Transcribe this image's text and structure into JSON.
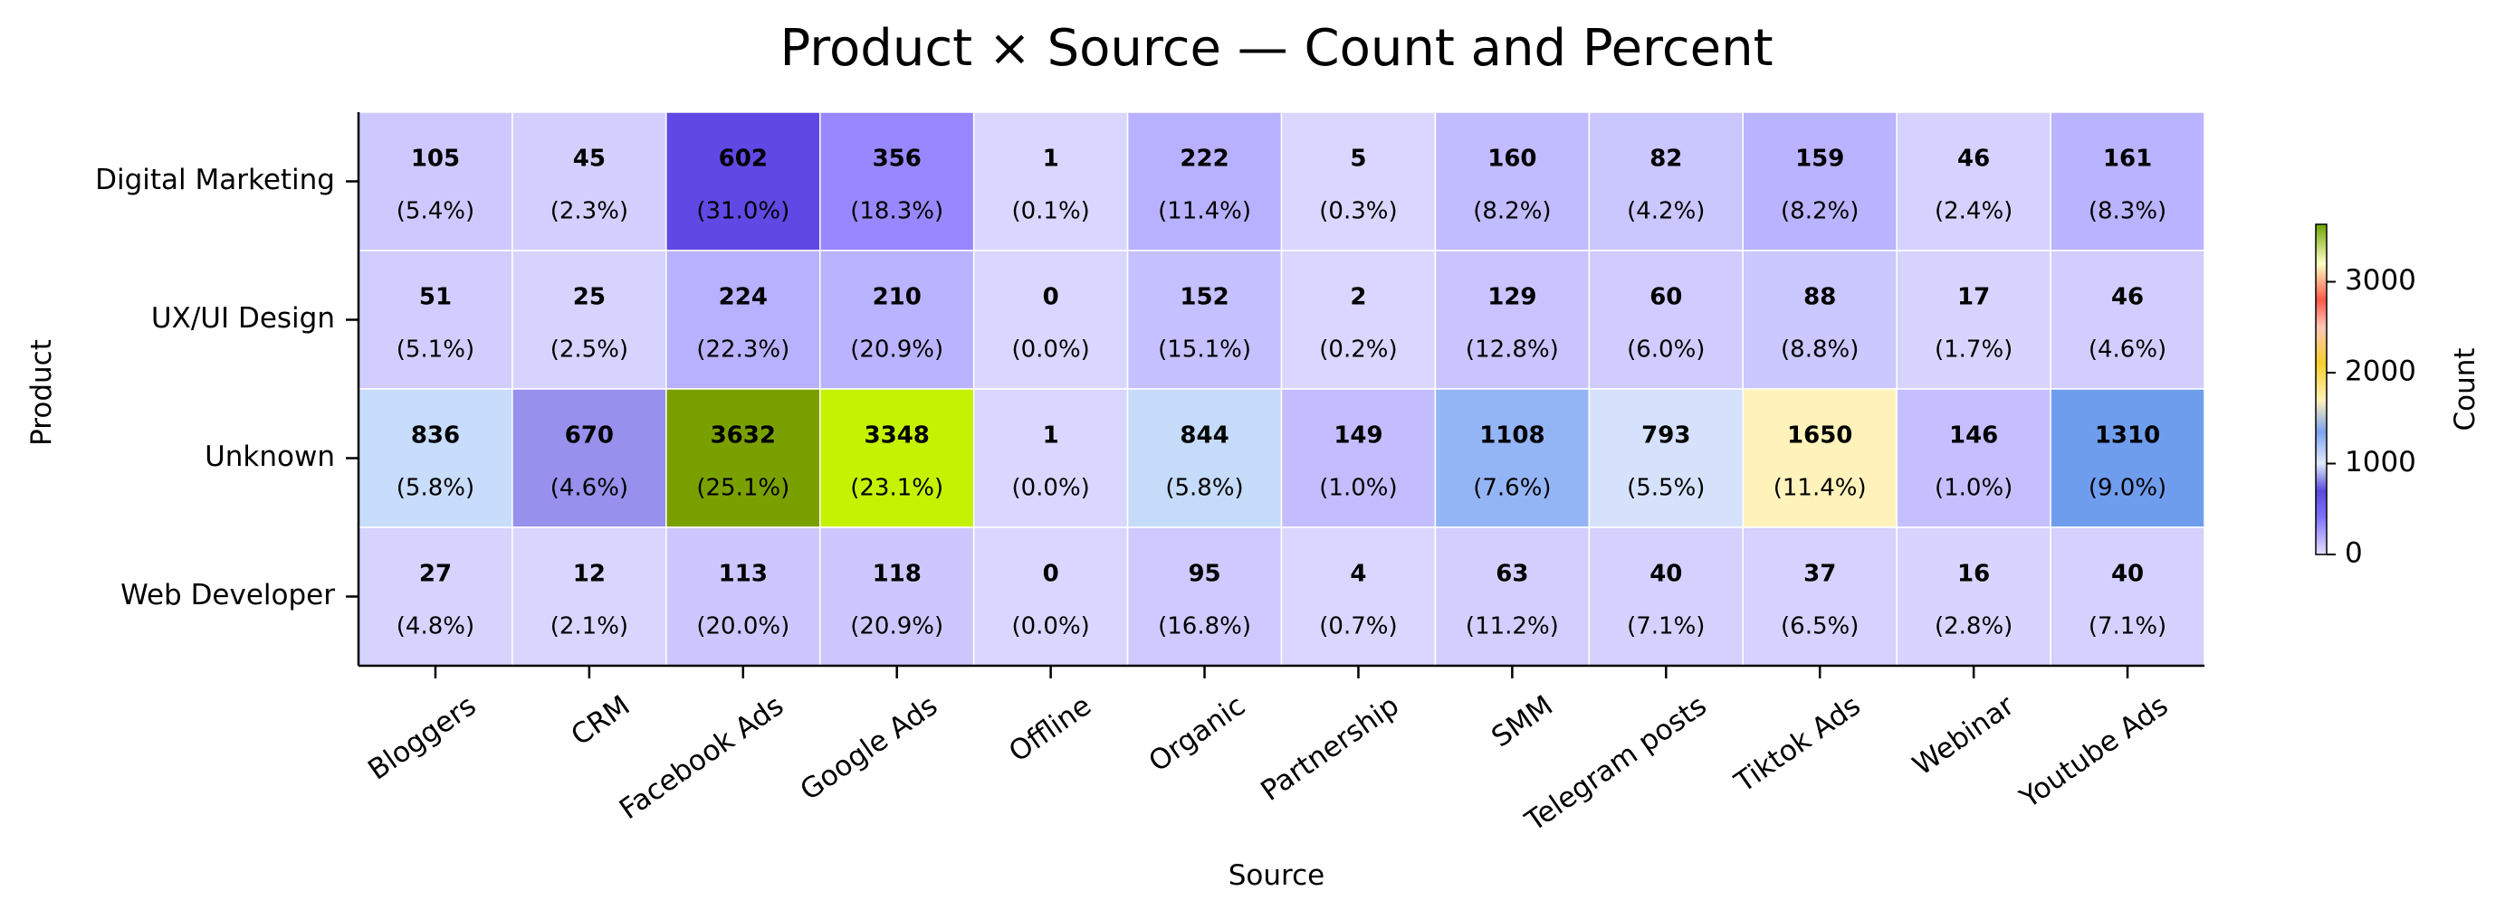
{
  "chart_data": {
    "type": "heatmap",
    "title": "Product × Source — Count and Percent",
    "xlabel": "Source",
    "ylabel": "Product",
    "x_categories": [
      "Bloggers",
      "CRM",
      "Facebook Ads",
      "Google Ads",
      "Offline",
      "Organic",
      "Partnership",
      "SMM",
      "Telegram posts",
      "Tiktok Ads",
      "Webinar",
      "Youtube Ads"
    ],
    "y_categories": [
      "Digital Marketing",
      "UX/UI Design",
      "Unknown",
      "Web Developer"
    ],
    "values": [
      [
        105,
        45,
        602,
        356,
        1,
        222,
        5,
        160,
        82,
        159,
        46,
        161
      ],
      [
        51,
        25,
        224,
        210,
        0,
        152,
        2,
        129,
        60,
        88,
        17,
        46
      ],
      [
        836,
        670,
        3632,
        3348,
        1,
        844,
        149,
        1108,
        793,
        1650,
        146,
        1310
      ],
      [
        27,
        12,
        113,
        118,
        0,
        95,
        4,
        63,
        40,
        37,
        16,
        40
      ]
    ],
    "percent_labels": [
      [
        "(5.4%)",
        "(2.3%)",
        "(31.0%)",
        "(18.3%)",
        "(0.1%)",
        "(11.4%)",
        "(0.3%)",
        "(8.2%)",
        "(4.2%)",
        "(8.2%)",
        "(2.4%)",
        "(8.3%)"
      ],
      [
        "(5.1%)",
        "(2.5%)",
        "(22.3%)",
        "(20.9%)",
        "(0.0%)",
        "(15.1%)",
        "(0.2%)",
        "(12.8%)",
        "(6.0%)",
        "(8.8%)",
        "(1.7%)",
        "(4.6%)"
      ],
      [
        "(5.8%)",
        "(4.6%)",
        "(25.1%)",
        "(23.1%)",
        "(0.0%)",
        "(5.8%)",
        "(1.0%)",
        "(7.6%)",
        "(5.5%)",
        "(11.4%)",
        "(1.0%)",
        "(9.0%)"
      ],
      [
        "(4.8%)",
        "(2.1%)",
        "(20.0%)",
        "(20.9%)",
        "(0.0%)",
        "(16.8%)",
        "(0.7%)",
        "(11.2%)",
        "(7.1%)",
        "(6.5%)",
        "(2.8%)",
        "(7.1%)"
      ]
    ],
    "cell_colors": [
      [
        "#cdc9ff",
        "#d3d0ff",
        "#6048e4",
        "#9888ff",
        "#d9d7ff",
        "#b8b1ff",
        "#d9d7ff",
        "#c1bbff",
        "#cac6ff",
        "#bab3ff",
        "#d5d2ff",
        "#bab3ff"
      ],
      [
        "#d1ceff",
        "#d6d3ff",
        "#b8b1ff",
        "#bab3ff",
        "#d9d7ff",
        "#c5c0ff",
        "#d9d7ff",
        "#c9c4ff",
        "#d0ccff",
        "#cbc7ff",
        "#d7d4ff",
        "#d1ceff"
      ],
      [
        "#c8dcfc",
        "#9790ec",
        "#7aa000",
        "#c4f200",
        "#d9d7ff",
        "#c5dbfa",
        "#c3bdff",
        "#94b5f5",
        "#d6e2fc",
        "#fff3bb",
        "#c5bfff",
        "#6f9ded"
      ],
      [
        "#d6d3ff",
        "#d8d5ff",
        "#ccc8ff",
        "#ccc8ff",
        "#d9d7ff",
        "#cecaff",
        "#d9d7ff",
        "#d2cfff",
        "#d4d1ff",
        "#d5d2ff",
        "#d7d4ff",
        "#d4d1ff"
      ]
    ],
    "colorbar": {
      "label": "Count",
      "range": [
        0,
        3632
      ],
      "ticks": [
        0,
        1000,
        2000,
        3000
      ],
      "tick_labels": [
        "0",
        "1000",
        "2000",
        "3000"
      ],
      "stops": [
        {
          "value": 0,
          "color": "#e3e0ff"
        },
        {
          "value": 420,
          "color": "#7e70ff"
        },
        {
          "value": 700,
          "color": "#5a4bdd"
        },
        {
          "value": 1000,
          "color": "#dfe9fb"
        },
        {
          "value": 1350,
          "color": "#7ea4ee"
        },
        {
          "value": 1700,
          "color": "#fff1b8"
        },
        {
          "value": 2100,
          "color": "#f6cf2a"
        },
        {
          "value": 2500,
          "color": "#ffc6b8"
        },
        {
          "value": 2800,
          "color": "#ff5a4a"
        },
        {
          "value": 3200,
          "color": "#fdfec3"
        },
        {
          "value": 3632,
          "color": "#6fa500"
        }
      ]
    }
  }
}
